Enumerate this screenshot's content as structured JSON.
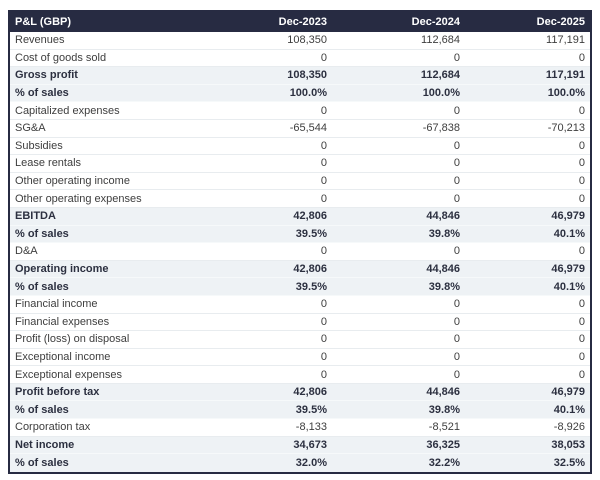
{
  "chart_data": {
    "type": "table",
    "title": "P&L (GBP)",
    "columns": [
      "Dec-2023",
      "Dec-2024",
      "Dec-2025"
    ],
    "rows": [
      {
        "label": "Revenues",
        "values": [
          "108,350",
          "112,684",
          "117,191"
        ],
        "is_total": false
      },
      {
        "label": "Cost of goods sold",
        "values": [
          "0",
          "0",
          "0"
        ],
        "is_total": false
      },
      {
        "label": "Gross profit",
        "values": [
          "108,350",
          "112,684",
          "117,191"
        ],
        "is_total": true
      },
      {
        "label": "% of sales",
        "values": [
          "100.0%",
          "100.0%",
          "100.0%"
        ],
        "is_total": true
      },
      {
        "label": "Capitalized expenses",
        "values": [
          "0",
          "0",
          "0"
        ],
        "is_total": false
      },
      {
        "label": "SG&A",
        "values": [
          "-65,544",
          "-67,838",
          "-70,213"
        ],
        "is_total": false
      },
      {
        "label": "Subsidies",
        "values": [
          "0",
          "0",
          "0"
        ],
        "is_total": false
      },
      {
        "label": "Lease rentals",
        "values": [
          "0",
          "0",
          "0"
        ],
        "is_total": false
      },
      {
        "label": "Other operating income",
        "values": [
          "0",
          "0",
          "0"
        ],
        "is_total": false
      },
      {
        "label": "Other operating expenses",
        "values": [
          "0",
          "0",
          "0"
        ],
        "is_total": false
      },
      {
        "label": "EBITDA",
        "values": [
          "42,806",
          "44,846",
          "46,979"
        ],
        "is_total": true
      },
      {
        "label": "% of sales",
        "values": [
          "39.5%",
          "39.8%",
          "40.1%"
        ],
        "is_total": true
      },
      {
        "label": "D&A",
        "values": [
          "0",
          "0",
          "0"
        ],
        "is_total": false
      },
      {
        "label": "Operating income",
        "values": [
          "42,806",
          "44,846",
          "46,979"
        ],
        "is_total": true
      },
      {
        "label": "% of sales",
        "values": [
          "39.5%",
          "39.8%",
          "40.1%"
        ],
        "is_total": true
      },
      {
        "label": "Financial income",
        "values": [
          "0",
          "0",
          "0"
        ],
        "is_total": false
      },
      {
        "label": "Financial expenses",
        "values": [
          "0",
          "0",
          "0"
        ],
        "is_total": false
      },
      {
        "label": "Profit (loss) on disposal",
        "values": [
          "0",
          "0",
          "0"
        ],
        "is_total": false
      },
      {
        "label": "Exceptional income",
        "values": [
          "0",
          "0",
          "0"
        ],
        "is_total": false
      },
      {
        "label": "Exceptional expenses",
        "values": [
          "0",
          "0",
          "0"
        ],
        "is_total": false
      },
      {
        "label": "Profit before tax",
        "values": [
          "42,806",
          "44,846",
          "46,979"
        ],
        "is_total": true
      },
      {
        "label": "% of sales",
        "values": [
          "39.5%",
          "39.8%",
          "40.1%"
        ],
        "is_total": true
      },
      {
        "label": "Corporation tax",
        "values": [
          "-8,133",
          "-8,521",
          "-8,926"
        ],
        "is_total": false
      },
      {
        "label": "Net income",
        "values": [
          "34,673",
          "36,325",
          "38,053"
        ],
        "is_total": true
      },
      {
        "label": "% of sales",
        "values": [
          "32.0%",
          "32.2%",
          "32.5%"
        ],
        "is_total": true
      }
    ]
  },
  "colors": {
    "header_bg": "#272b42",
    "header_text": "#ffffff",
    "total_row_bg": "#eef2f5",
    "body_text": "#3e3e3e",
    "total_text": "#2c3040",
    "outer_border": "#272b42",
    "row_divider": "#e8ecef"
  }
}
